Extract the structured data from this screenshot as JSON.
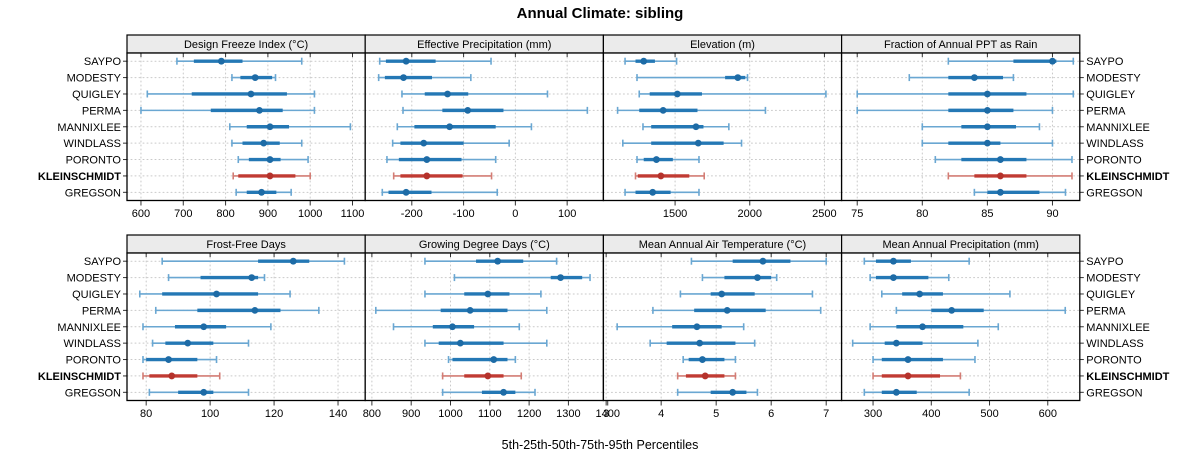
{
  "title": "Annual Climate: sibling",
  "xlabel": "5th-25th-50th-75th-95th Percentiles",
  "colors": {
    "blue_main": "#2478b5",
    "blue_dot": "#1d6ba6",
    "blue_light": "#6aa7d2",
    "red_main": "#c13b33",
    "red_dot": "#b5322b",
    "red_light": "#d37d75",
    "grid": "#c9c9c9",
    "strip_bg": "#ebebeb",
    "border": "#000000",
    "tick": "#333333"
  },
  "chart_data": {
    "type": "dotplot-percentiles",
    "percentile_labels": [
      "5th",
      "25th",
      "50th",
      "75th",
      "95th"
    ],
    "sites": [
      "SAYPO",
      "MODESTY",
      "QUIGLEY",
      "PERMA",
      "MANNIXLEE",
      "WINDLASS",
      "PORONTO",
      "KLEINSCHMIDT",
      "GREGSON"
    ],
    "highlight_site": "KLEINSCHMIDT",
    "grid": true,
    "layout": "2 rows x 4 columns, free x scales, site labels on both sides",
    "panels": [
      {
        "title": "Design Freeze Index (°C)",
        "ticks": [
          600,
          700,
          800,
          900,
          1000,
          1100
        ],
        "xlim": [
          567,
          1130
        ],
        "values": [
          [
            685,
            725,
            790,
            840,
            980
          ],
          [
            815,
            835,
            870,
            910,
            918
          ],
          [
            615,
            720,
            860,
            945,
            1010
          ],
          [
            600,
            765,
            880,
            935,
            1010
          ],
          [
            810,
            850,
            905,
            950,
            1095
          ],
          [
            815,
            840,
            890,
            928,
            980
          ],
          [
            830,
            855,
            905,
            930,
            995
          ],
          [
            818,
            830,
            905,
            965,
            1000
          ],
          [
            825,
            850,
            885,
            920,
            955
          ]
        ]
      },
      {
        "title": "Effective Precipitation (mm)",
        "ticks": [
          -200,
          -100,
          0,
          100
        ],
        "xlim": [
          -290,
          170
        ],
        "values": [
          [
            -262,
            -250,
            -211,
            -154,
            -47
          ],
          [
            -264,
            -252,
            -216,
            -161,
            -86
          ],
          [
            -219,
            -175,
            -131,
            -91,
            62
          ],
          [
            -217,
            -141,
            -92,
            -23,
            139
          ],
          [
            -228,
            -195,
            -127,
            -38,
            31
          ],
          [
            -237,
            -222,
            -177,
            -100,
            -12
          ],
          [
            -248,
            -225,
            -171,
            -104,
            -38
          ],
          [
            -235,
            -222,
            -171,
            -102,
            -46
          ],
          [
            -257,
            -245,
            -211,
            -162,
            -35
          ]
        ]
      },
      {
        "title": "Elevation (m)",
        "ticks": [
          1500,
          2000,
          2500
        ],
        "xlim": [
          1020,
          2615
        ],
        "values": [
          [
            1165,
            1235,
            1290,
            1365,
            1510
          ],
          [
            1245,
            1835,
            1920,
            1970,
            1985
          ],
          [
            1260,
            1330,
            1515,
            1680,
            2510
          ],
          [
            1115,
            1260,
            1420,
            1650,
            2105
          ],
          [
            1285,
            1340,
            1640,
            1690,
            1860
          ],
          [
            1150,
            1340,
            1655,
            1825,
            1945
          ],
          [
            1245,
            1290,
            1375,
            1485,
            1660
          ],
          [
            1235,
            1250,
            1405,
            1595,
            1695
          ],
          [
            1165,
            1235,
            1350,
            1470,
            1660
          ]
        ]
      },
      {
        "title": "Fraction of Annual PPT as Rain",
        "ticks": [
          75,
          80,
          85,
          90
        ],
        "xlim": [
          73.8,
          92.1
        ],
        "values": [
          [
            82,
            87,
            90,
            90.3,
            91.6
          ],
          [
            79,
            82,
            84,
            86.2,
            87
          ],
          [
            75,
            82,
            85,
            88,
            91.6
          ],
          [
            75,
            82,
            85,
            87,
            90
          ],
          [
            80,
            83,
            85,
            87.2,
            89
          ],
          [
            80,
            82,
            85,
            86,
            90
          ],
          [
            81,
            83,
            86,
            88,
            91.5
          ],
          [
            82,
            84,
            86,
            88,
            91.5
          ],
          [
            84,
            85,
            86,
            89,
            91
          ]
        ]
      },
      {
        "title": "Frost-Free Days",
        "ticks": [
          80,
          100,
          120,
          140
        ],
        "xlim": [
          74,
          148.5
        ],
        "values": [
          [
            85,
            115,
            126,
            131,
            142
          ],
          [
            87,
            97,
            113,
            115,
            117
          ],
          [
            78,
            85,
            102,
            115,
            125
          ],
          [
            83,
            96,
            114,
            122,
            134
          ],
          [
            79,
            89,
            98,
            105,
            119
          ],
          [
            82,
            86,
            93,
            101,
            112
          ],
          [
            79,
            80,
            87,
            96,
            102
          ],
          [
            79,
            81,
            88,
            96,
            103
          ],
          [
            81,
            90,
            98,
            101,
            112
          ]
        ]
      },
      {
        "title": "Growing Degree Days (°C)",
        "ticks": [
          800,
          900,
          1000,
          1100,
          1200,
          1300,
          1400
        ],
        "xlim": [
          783,
          1389
        ],
        "values": [
          [
            935,
            1065,
            1120,
            1185,
            1270
          ],
          [
            1010,
            1255,
            1280,
            1335,
            1355
          ],
          [
            935,
            1035,
            1095,
            1150,
            1230
          ],
          [
            810,
            975,
            1050,
            1145,
            1245
          ],
          [
            855,
            955,
            1005,
            1060,
            1175
          ],
          [
            935,
            970,
            1025,
            1135,
            1245
          ],
          [
            995,
            1005,
            1110,
            1145,
            1165
          ],
          [
            980,
            1035,
            1095,
            1135,
            1180
          ],
          [
            980,
            1080,
            1135,
            1165,
            1215
          ]
        ]
      },
      {
        "title": "Mean Annual Air Temperature (°C)",
        "ticks": [
          3,
          4,
          5,
          6,
          7
        ],
        "xlim": [
          2.95,
          7.28
        ],
        "values": [
          [
            4.55,
            5.3,
            5.85,
            6.35,
            7.0
          ],
          [
            4.75,
            5.15,
            5.75,
            6.0,
            6.1
          ],
          [
            4.35,
            4.9,
            5.1,
            5.7,
            6.75
          ],
          [
            3.85,
            4.6,
            5.2,
            5.9,
            6.9
          ],
          [
            3.2,
            4.2,
            4.65,
            5.1,
            5.5
          ],
          [
            3.8,
            4.1,
            4.7,
            5.35,
            5.7
          ],
          [
            4.4,
            4.5,
            4.75,
            5.15,
            5.35
          ],
          [
            4.3,
            4.45,
            4.8,
            5.15,
            5.35
          ],
          [
            4.3,
            4.9,
            5.3,
            5.55,
            5.75
          ]
        ]
      },
      {
        "title": "Mean Annual Precipitation (mm)",
        "ticks": [
          300,
          400,
          500,
          600
        ],
        "xlim": [
          246,
          655
        ],
        "values": [
          [
            285,
            305,
            335,
            365,
            465
          ],
          [
            295,
            305,
            335,
            395,
            430
          ],
          [
            315,
            350,
            380,
            420,
            535
          ],
          [
            340,
            400,
            435,
            490,
            630
          ],
          [
            295,
            340,
            385,
            455,
            515
          ],
          [
            265,
            320,
            340,
            385,
            480
          ],
          [
            300,
            315,
            360,
            420,
            475
          ],
          [
            300,
            315,
            360,
            415,
            450
          ],
          [
            285,
            315,
            340,
            375,
            465
          ]
        ]
      }
    ]
  }
}
